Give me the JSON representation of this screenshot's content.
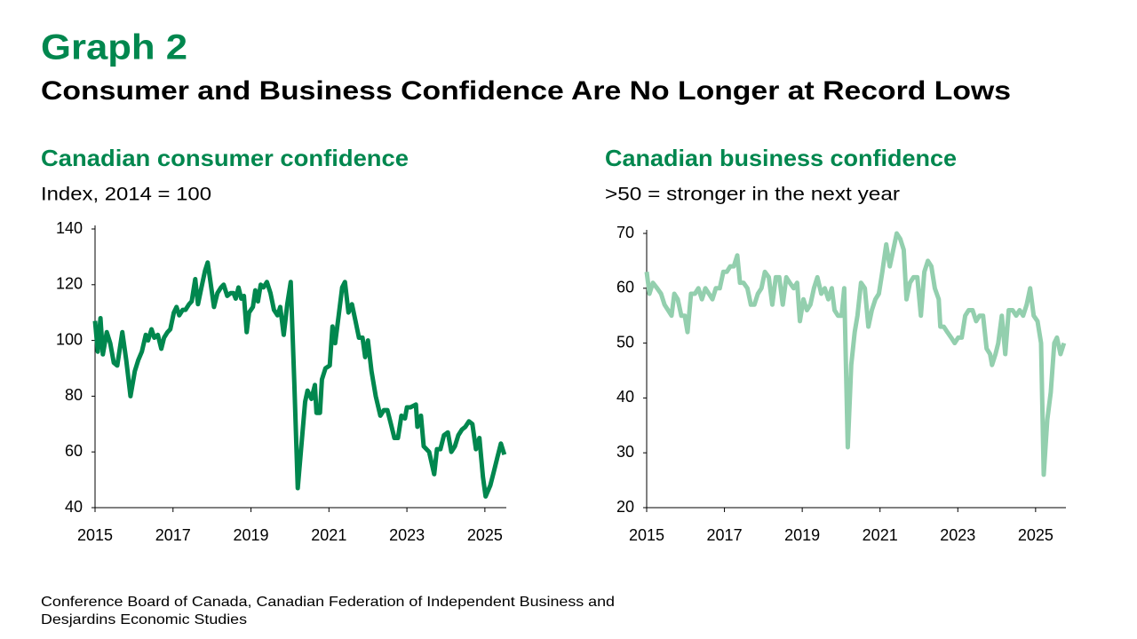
{
  "header": {
    "label": "Graph 2",
    "title": "Consumer and Business Confidence Are No Longer at Record Lows"
  },
  "chart_data": [
    {
      "type": "line",
      "title": "Canadian consumer confidence",
      "subtitle": "Index, 2014 = 100",
      "color": "#00874e",
      "xlim": [
        2015,
        2025.55
      ],
      "xticks": [
        2015,
        2017,
        2019,
        2021,
        2023,
        2025
      ],
      "ylim": [
        40,
        140
      ],
      "yticks": [
        40,
        60,
        80,
        100,
        120,
        140
      ],
      "x": [
        2015.0,
        2015.07,
        2015.14,
        2015.2,
        2015.3,
        2015.39,
        2015.48,
        2015.57,
        2015.7,
        2015.8,
        2015.91,
        2016.02,
        2016.11,
        2016.2,
        2016.3,
        2016.36,
        2016.45,
        2016.52,
        2016.61,
        2016.7,
        2016.77,
        2016.86,
        2016.93,
        2017.02,
        2017.09,
        2017.16,
        2017.25,
        2017.32,
        2017.41,
        2017.48,
        2017.57,
        2017.64,
        2017.73,
        2017.82,
        2017.89,
        2017.95,
        2018.05,
        2018.14,
        2018.23,
        2018.3,
        2018.39,
        2018.48,
        2018.55,
        2018.61,
        2018.68,
        2018.75,
        2018.82,
        2018.89,
        2018.95,
        2019.05,
        2019.11,
        2019.18,
        2019.25,
        2019.32,
        2019.41,
        2019.5,
        2019.59,
        2019.68,
        2019.75,
        2019.84,
        2019.93,
        2020.02,
        2020.11,
        2020.2,
        2020.39,
        2020.45,
        2020.55,
        2020.64,
        2020.68,
        2020.77,
        2020.82,
        2020.91,
        2021.02,
        2021.09,
        2021.16,
        2021.25,
        2021.34,
        2021.41,
        2021.5,
        2021.59,
        2021.68,
        2021.77,
        2021.86,
        2021.93,
        2022.0,
        2022.09,
        2022.2,
        2022.32,
        2022.41,
        2022.5,
        2022.59,
        2022.68,
        2022.77,
        2022.86,
        2022.95,
        2023.0,
        2023.09,
        2023.23,
        2023.27,
        2023.36,
        2023.43,
        2023.57,
        2023.7,
        2023.77,
        2023.86,
        2023.95,
        2024.05,
        2024.14,
        2024.23,
        2024.32,
        2024.41,
        2024.5,
        2024.59,
        2024.68,
        2024.77,
        2024.86,
        2024.95,
        2025.02,
        2025.14,
        2025.23,
        2025.32,
        2025.41,
        2025.5
      ],
      "values": [
        107,
        96,
        108,
        95,
        103,
        99,
        92,
        91,
        103,
        93,
        80,
        89,
        93,
        96,
        102,
        100,
        104,
        101,
        102,
        97,
        101,
        103,
        104,
        110,
        112,
        109,
        111,
        111,
        113,
        114,
        122,
        113,
        119,
        125,
        128,
        122,
        112,
        117,
        119,
        120,
        116,
        117,
        117,
        115,
        119,
        115,
        116,
        103,
        110,
        112,
        118,
        114,
        120,
        119,
        121,
        117,
        111,
        109,
        112,
        102,
        113,
        121,
        85,
        47,
        78,
        82,
        79,
        84,
        74,
        74,
        86,
        90,
        91,
        105,
        99,
        109,
        119,
        121,
        110,
        113,
        107,
        101,
        101,
        94,
        100,
        89,
        80,
        73,
        75,
        75,
        70,
        65,
        65,
        73,
        72,
        76,
        76,
        77,
        69,
        73,
        62,
        60,
        52,
        61,
        61,
        66,
        67,
        60,
        62,
        66,
        68,
        69,
        71,
        70,
        61,
        65,
        51,
        44,
        48,
        53,
        58,
        63,
        59
      ]
    },
    {
      "type": "line",
      "title": "Canadian business confidence",
      "subtitle": ">50 = stronger in the next year",
      "color": "#93cfae",
      "xlim": [
        2015,
        2025.78
      ],
      "xticks": [
        2015,
        2017,
        2019,
        2021,
        2023,
        2025
      ],
      "ylim": [
        20,
        70
      ],
      "yticks": [
        20,
        30,
        40,
        50,
        60,
        70
      ],
      "x": [
        2015.0,
        2015.07,
        2015.16,
        2015.27,
        2015.37,
        2015.46,
        2015.55,
        2015.64,
        2015.71,
        2015.8,
        2015.89,
        2015.98,
        2016.05,
        2016.14,
        2016.24,
        2016.33,
        2016.42,
        2016.51,
        2016.6,
        2016.69,
        2016.78,
        2016.88,
        2016.97,
        2017.06,
        2017.15,
        2017.24,
        2017.33,
        2017.4,
        2017.49,
        2017.59,
        2017.68,
        2017.77,
        2017.86,
        2017.95,
        2018.04,
        2018.14,
        2018.23,
        2018.32,
        2018.41,
        2018.5,
        2018.59,
        2018.68,
        2018.78,
        2018.87,
        2018.94,
        2019.03,
        2019.12,
        2019.21,
        2019.3,
        2019.39,
        2019.49,
        2019.58,
        2019.67,
        2019.76,
        2019.83,
        2019.92,
        2020.01,
        2020.08,
        2020.17,
        2020.26,
        2020.35,
        2020.42,
        2020.51,
        2020.61,
        2020.7,
        2020.79,
        2020.88,
        2020.97,
        2021.06,
        2021.16,
        2021.25,
        2021.34,
        2021.43,
        2021.52,
        2021.61,
        2021.68,
        2021.77,
        2021.86,
        2021.96,
        2022.05,
        2022.14,
        2022.23,
        2022.32,
        2022.41,
        2022.51,
        2022.55,
        2022.64,
        2022.73,
        2022.83,
        2022.92,
        2023.01,
        2023.1,
        2023.19,
        2023.28,
        2023.38,
        2023.47,
        2023.56,
        2023.65,
        2023.74,
        2023.83,
        2023.88,
        2023.97,
        2024.04,
        2024.13,
        2024.22,
        2024.31,
        2024.41,
        2024.5,
        2024.59,
        2024.68,
        2024.77,
        2024.86,
        2024.95,
        2025.05,
        2025.14,
        2025.21,
        2025.3,
        2025.39,
        2025.48,
        2025.55,
        2025.64,
        2025.73
      ],
      "values": [
        63,
        59,
        61,
        60,
        59,
        57,
        56,
        55,
        59,
        58,
        55,
        55,
        52,
        59,
        59,
        60,
        58,
        60,
        59,
        58,
        60,
        60,
        63,
        63,
        64,
        64,
        66,
        61,
        61,
        60,
        57,
        57,
        59,
        60,
        63,
        62,
        57,
        62,
        62,
        57,
        62,
        61,
        60,
        61,
        54,
        58,
        56,
        57,
        60,
        62,
        59,
        60,
        58,
        60,
        56,
        55,
        55,
        60,
        31,
        46,
        52,
        55,
        61,
        60,
        53,
        56,
        58,
        59,
        63,
        68,
        64,
        67,
        70,
        69,
        67,
        58,
        61,
        62,
        62,
        55,
        63,
        65,
        64,
        60,
        58,
        53,
        53,
        52,
        51,
        50,
        51,
        51,
        55,
        56,
        56,
        54,
        55,
        55,
        49,
        48,
        46,
        48,
        50,
        55,
        48,
        56,
        56,
        55,
        56,
        55,
        57,
        60,
        55,
        54,
        50,
        26,
        36,
        41,
        50,
        51,
        48,
        50
      ]
    }
  ],
  "source": [
    "Conference Board of Canada, Canadian Federation of Independent Business and",
    "Desjardins Economic Studies"
  ]
}
